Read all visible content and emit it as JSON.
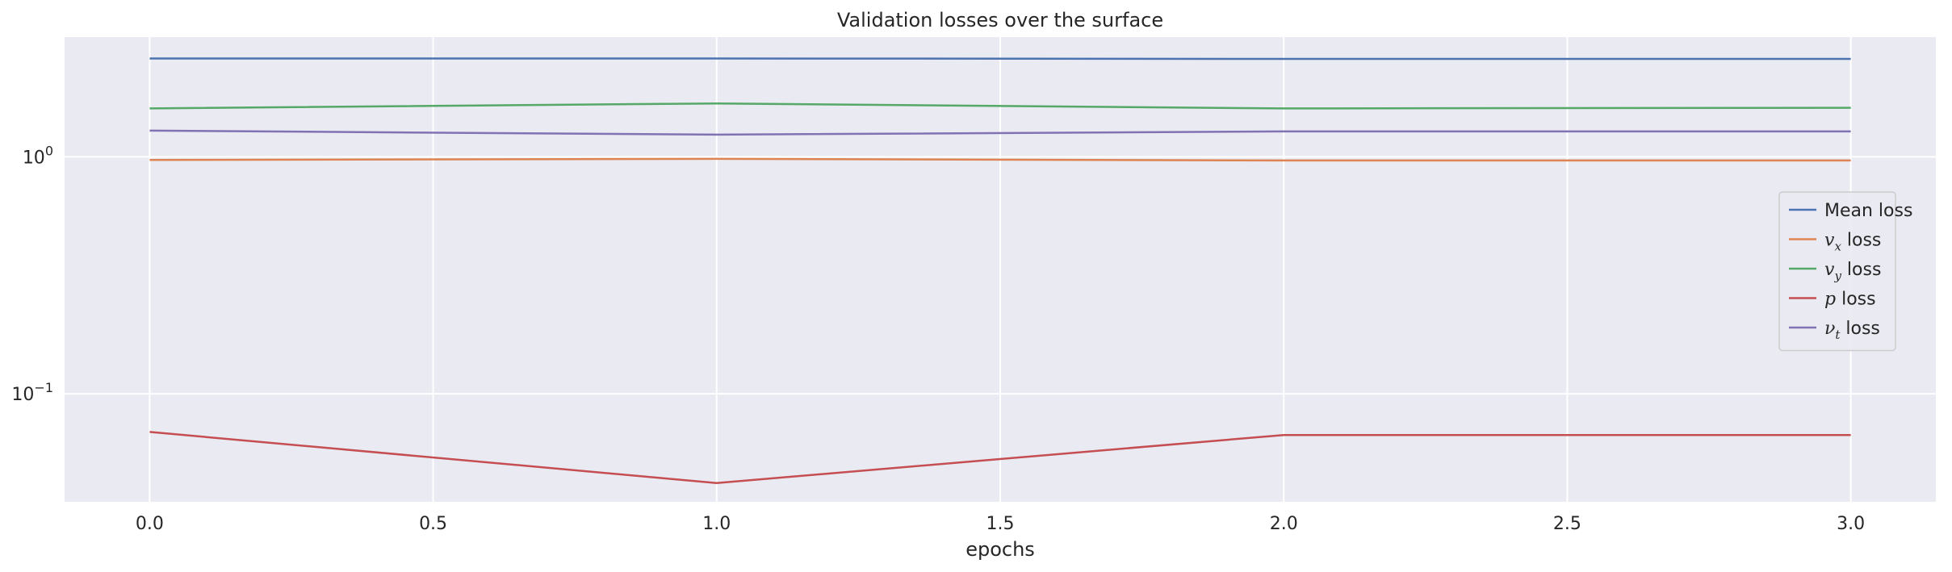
{
  "chart_data": {
    "type": "line",
    "title": "Validation losses over the surface",
    "xlabel": "epochs",
    "ylabel": "",
    "x": [
      0,
      1,
      2,
      3
    ],
    "xlim": [
      -0.15,
      3.15
    ],
    "ylim": [
      0.035,
      3.2
    ],
    "yscale": "log",
    "xticks": [
      0.0,
      0.5,
      1.0,
      1.5,
      2.0,
      2.5,
      3.0
    ],
    "xtick_labels": [
      "0.0",
      "0.5",
      "1.0",
      "1.5",
      "2.0",
      "2.5",
      "3.0"
    ],
    "yticks": [
      {
        "value": 1,
        "base": "10",
        "exp": "0"
      },
      {
        "value": 0.1,
        "base": "10",
        "exp": "−1"
      }
    ],
    "grid": true,
    "legend_position": "center-right",
    "background": "#eaeaf2",
    "series": [
      {
        "name": "Mean loss",
        "label_parts": [
          {
            "t": "Mean loss"
          }
        ],
        "color": "#4c72b0",
        "values": [
          2.6,
          2.6,
          2.59,
          2.59
        ]
      },
      {
        "name": "v_x loss",
        "label_parts": [
          {
            "t": "v",
            "i": true
          },
          {
            "t": "x",
            "i": true,
            "sub": true
          },
          {
            "t": " loss"
          }
        ],
        "color": "#dd8452",
        "values": [
          0.97,
          0.98,
          0.965,
          0.965
        ]
      },
      {
        "name": "v_y loss",
        "label_parts": [
          {
            "t": "v",
            "i": true
          },
          {
            "t": "y",
            "i": true,
            "sub": true
          },
          {
            "t": " loss"
          }
        ],
        "color": "#55a868",
        "values": [
          1.6,
          1.68,
          1.6,
          1.61
        ]
      },
      {
        "name": "p loss",
        "label_parts": [
          {
            "t": "p",
            "i": true
          },
          {
            "t": " loss"
          }
        ],
        "color": "#c44e52",
        "values": [
          0.069,
          0.042,
          0.067,
          0.067
        ]
      },
      {
        "name": "ν_t loss",
        "label_parts": [
          {
            "t": "ν",
            "i": true
          },
          {
            "t": "t",
            "i": true,
            "sub": true
          },
          {
            "t": " loss"
          }
        ],
        "color": "#8172b3",
        "values": [
          1.29,
          1.24,
          1.28,
          1.28
        ]
      }
    ]
  }
}
